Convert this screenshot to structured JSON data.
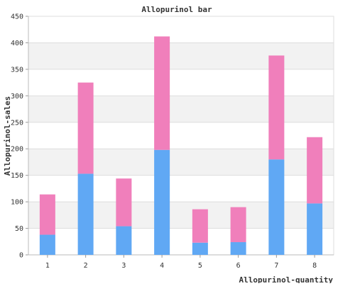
{
  "chart_data": {
    "type": "bar",
    "stacked": true,
    "title": "Allopurinol bar",
    "xlabel": "Allopurinol-quantity",
    "ylabel": "Allopurinol-sales",
    "categories": [
      "1",
      "2",
      "3",
      "4",
      "5",
      "6",
      "7",
      "8"
    ],
    "series": [
      {
        "values": [
          38,
          153,
          54,
          198,
          23,
          24,
          180,
          97
        ],
        "color": "#60a8f4"
      },
      {
        "values": [
          76,
          172,
          90,
          214,
          63,
          66,
          196,
          125
        ],
        "color": "#f07fbb"
      }
    ],
    "ylim": [
      0,
      450
    ],
    "yticks": [
      "0",
      "50",
      "100",
      "150",
      "200",
      "250",
      "300",
      "350",
      "400",
      "450"
    ],
    "grid": true,
    "band_fill": "#f2f2f2"
  }
}
